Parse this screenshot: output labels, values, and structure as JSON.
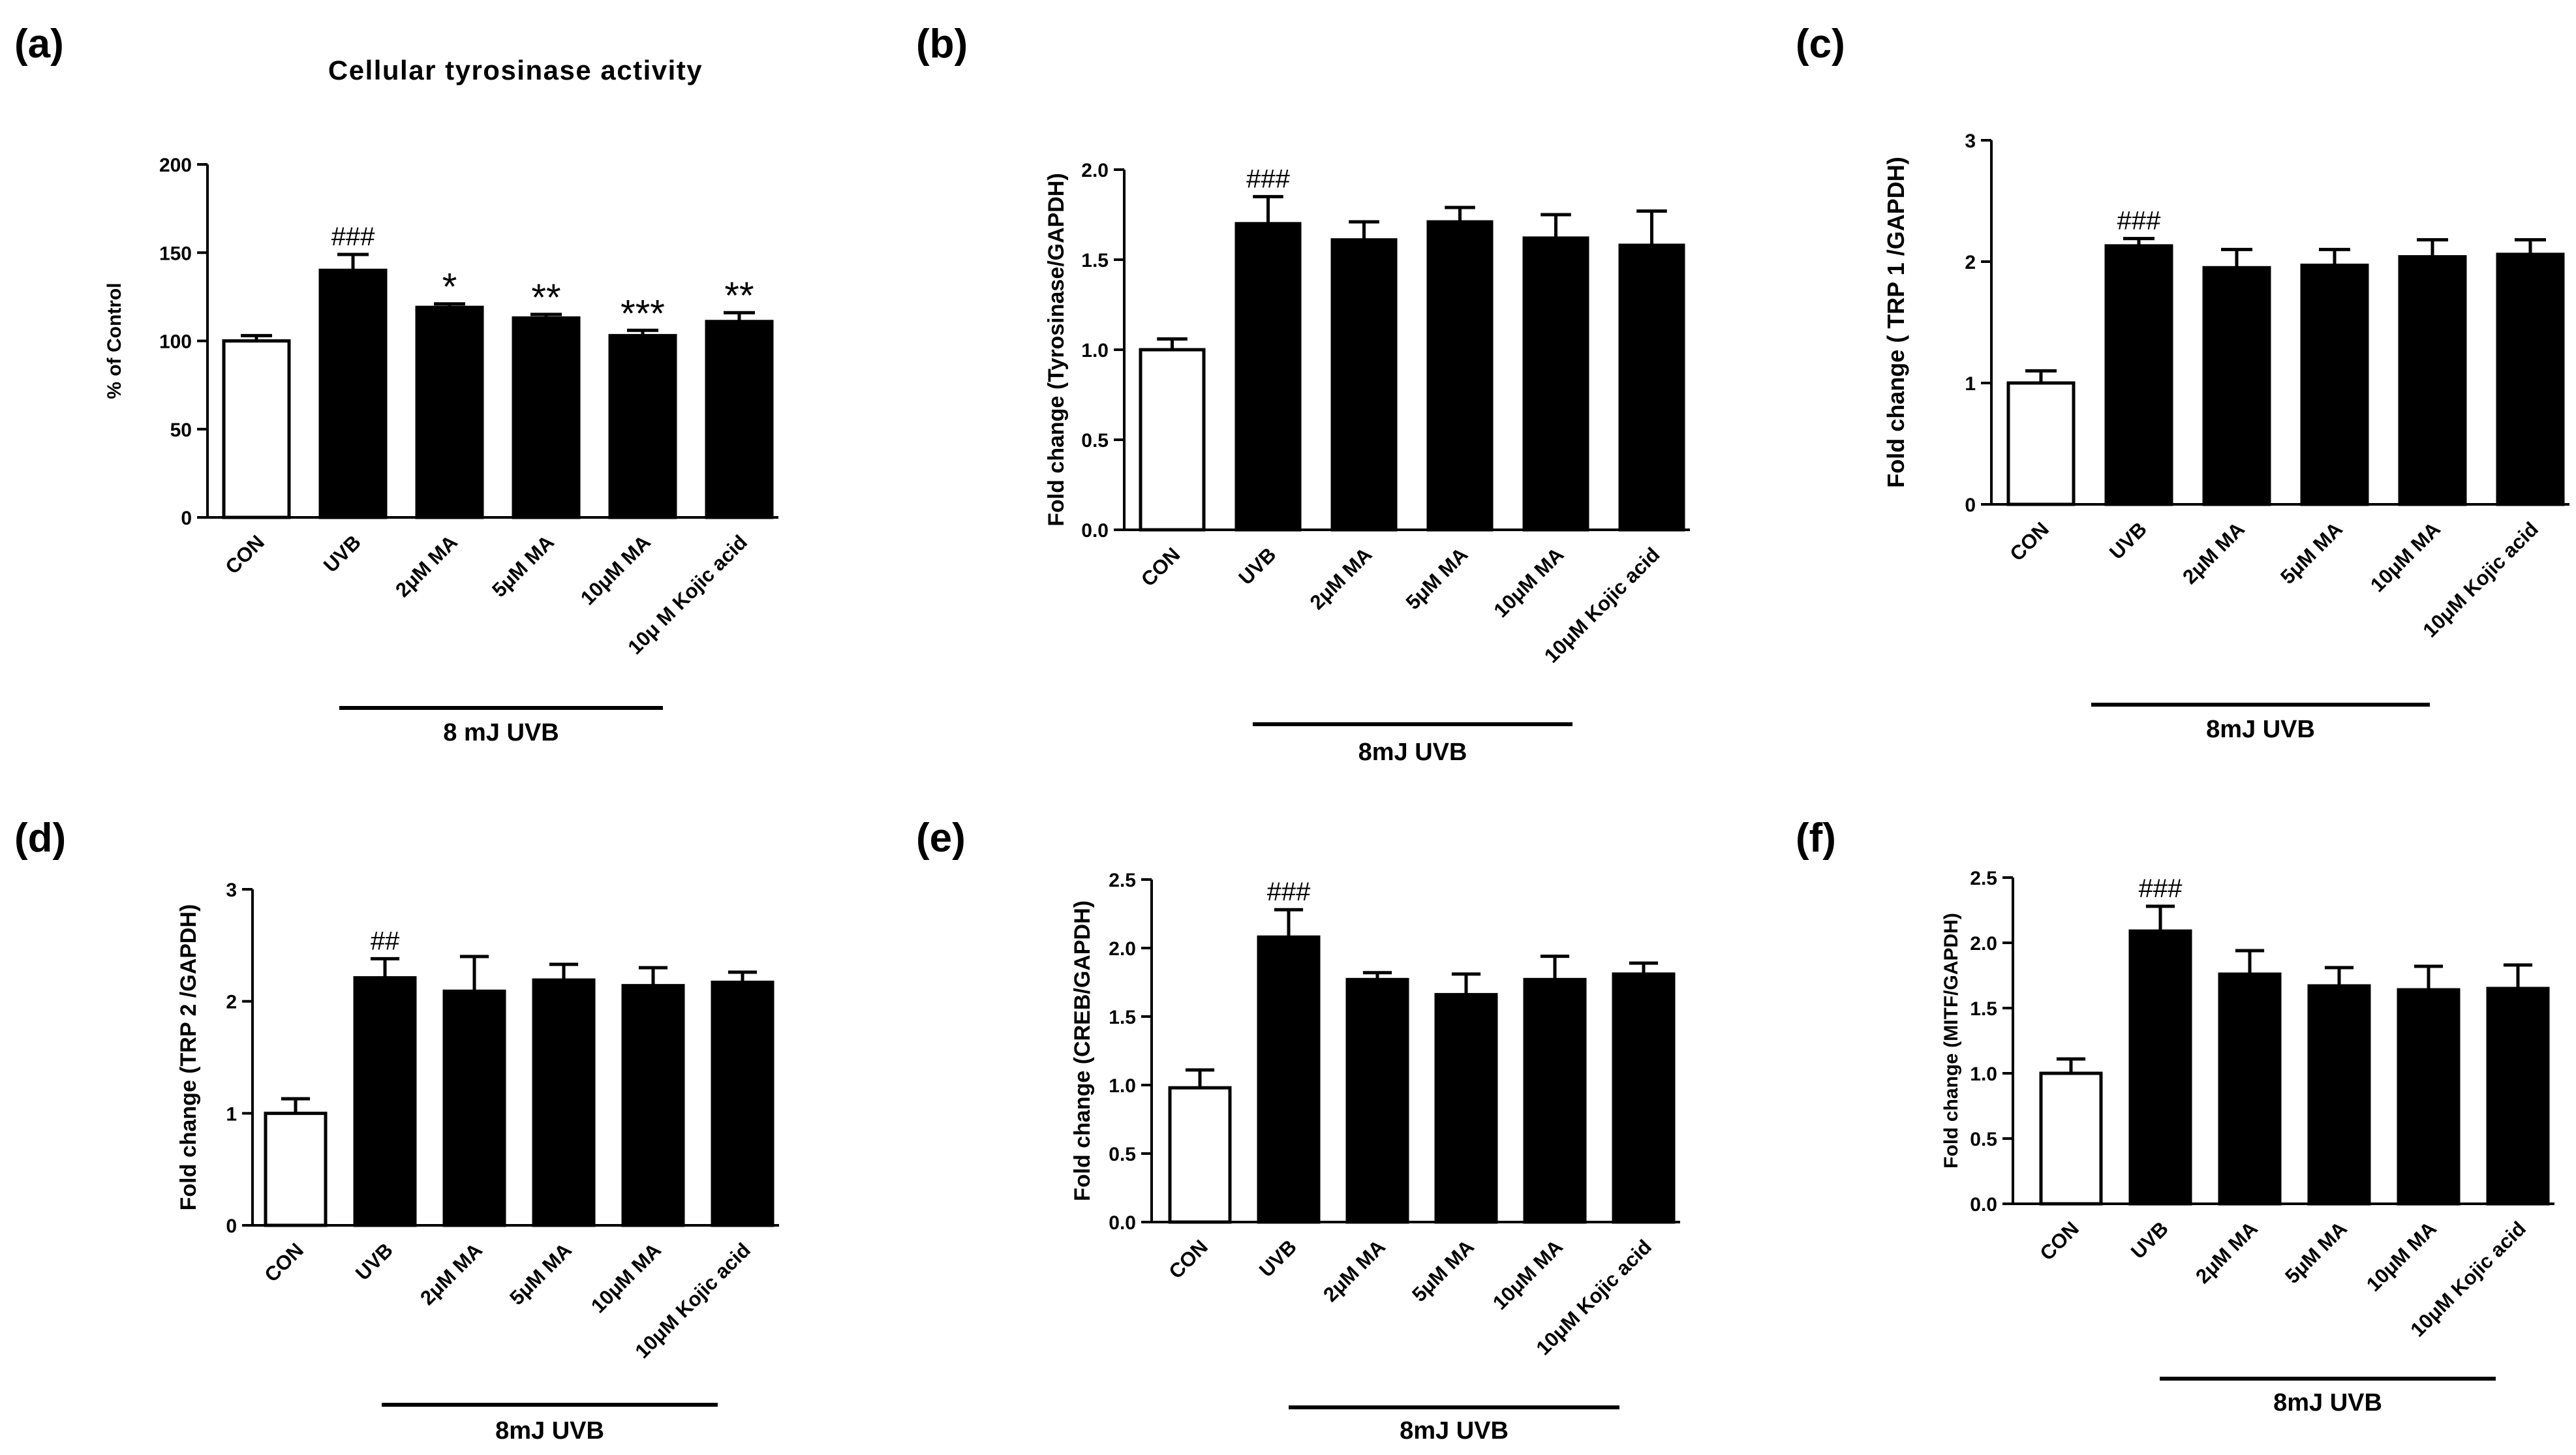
{
  "chart_data": [
    {
      "type": "bar",
      "panel_label": "(a)",
      "title": "Cellular tyrosinase activity",
      "ylabel": "% of Control",
      "xlabel": "",
      "ylim": [
        0,
        200
      ],
      "yticks": [
        0,
        50,
        100,
        150,
        200
      ],
      "tick_labels": [
        "0",
        "50",
        "100",
        "150",
        "200"
      ],
      "categories": [
        "CON",
        "UVB",
        "2μM MA",
        "5μM MA",
        "10μM MA",
        "10μ M Kojic acid"
      ],
      "values": [
        100,
        140,
        119,
        113,
        103,
        111
      ],
      "errors": [
        3,
        9,
        2,
        2,
        3,
        5
      ],
      "annotations": [
        "",
        "###",
        "*",
        "**",
        "***",
        "**"
      ],
      "bar_colors": [
        "#ffffff",
        "#000000",
        "#000000",
        "#000000",
        "#000000",
        "#000000"
      ],
      "group_label": "8 mJ UVB"
    },
    {
      "type": "bar",
      "panel_label": "(b)",
      "title": "",
      "ylabel": "Fold change (Tyrosinase/GAPDH)",
      "xlabel": "",
      "ylim": [
        0,
        2
      ],
      "yticks": [
        0,
        0.5,
        1,
        1.5,
        2
      ],
      "tick_labels": [
        "0.0",
        "0.5",
        "1.0",
        "1.5",
        "2.0"
      ],
      "categories": [
        "CON",
        "UVB",
        "2μM MA",
        "5μM MA",
        "10μM MA",
        "10μM Kojic acid"
      ],
      "values": [
        1.0,
        1.7,
        1.61,
        1.71,
        1.62,
        1.58
      ],
      "errors": [
        0.06,
        0.15,
        0.1,
        0.08,
        0.13,
        0.19
      ],
      "annotations": [
        "",
        "###",
        "",
        "",
        "",
        ""
      ],
      "bar_colors": [
        "#ffffff",
        "#000000",
        "#000000",
        "#000000",
        "#000000",
        "#000000"
      ],
      "group_label": "8mJ UVB"
    },
    {
      "type": "bar",
      "panel_label": "(c)",
      "title": "",
      "ylabel": "Fold change ( TRP 1 /GAPDH)",
      "xlabel": "",
      "ylim": [
        0,
        3
      ],
      "yticks": [
        0,
        1,
        2,
        3
      ],
      "tick_labels": [
        "0",
        "1",
        "2",
        "3"
      ],
      "categories": [
        "CON",
        "UVB",
        "2μM MA",
        "5μM MA",
        "10μM MA",
        "10μM Kojic acid"
      ],
      "values": [
        1.0,
        2.13,
        1.95,
        1.97,
        2.04,
        2.06
      ],
      "errors": [
        0.1,
        0.06,
        0.15,
        0.13,
        0.14,
        0.12
      ],
      "annotations": [
        "",
        "###",
        "",
        "",
        "",
        ""
      ],
      "bar_colors": [
        "#ffffff",
        "#000000",
        "#000000",
        "#000000",
        "#000000",
        "#000000"
      ],
      "group_label": "8mJ UVB"
    },
    {
      "type": "bar",
      "panel_label": "(d)",
      "title": "",
      "ylabel": "Fold change (TRP 2 /GAPDH)",
      "xlabel": "",
      "ylim": [
        0,
        3
      ],
      "yticks": [
        0,
        1,
        2,
        3
      ],
      "tick_labels": [
        "0",
        "1",
        "2",
        "3"
      ],
      "categories": [
        "CON",
        "UVB",
        "2μM MA",
        "5μM MA",
        "10μM MA",
        "10μM Kojic acid"
      ],
      "values": [
        1.0,
        2.21,
        2.09,
        2.19,
        2.14,
        2.17
      ],
      "errors": [
        0.13,
        0.17,
        0.31,
        0.14,
        0.16,
        0.09
      ],
      "annotations": [
        "",
        "##",
        "",
        "",
        "",
        ""
      ],
      "bar_colors": [
        "#ffffff",
        "#000000",
        "#000000",
        "#000000",
        "#000000",
        "#000000"
      ],
      "group_label": "8mJ UVB"
    },
    {
      "type": "bar",
      "panel_label": "(e)",
      "title": "",
      "ylabel": "Fold change (CREB/GAPDH)",
      "xlabel": "",
      "ylim": [
        0,
        2.5
      ],
      "yticks": [
        0,
        0.5,
        1,
        1.5,
        2,
        2.5
      ],
      "tick_labels": [
        "0.0",
        "0.5",
        "1.0",
        "1.5",
        "2.0",
        "2.5"
      ],
      "categories": [
        "CON",
        "UVB",
        "2μM MA",
        "5μM MA",
        "10μM MA",
        "10μM Kojic acid"
      ],
      "values": [
        0.98,
        2.08,
        1.77,
        1.66,
        1.77,
        1.81
      ],
      "errors": [
        0.13,
        0.2,
        0.05,
        0.15,
        0.17,
        0.08
      ],
      "annotations": [
        "",
        "###",
        "",
        "",
        "",
        ""
      ],
      "bar_colors": [
        "#ffffff",
        "#000000",
        "#000000",
        "#000000",
        "#000000",
        "#000000"
      ],
      "group_label": "8mJ UVB"
    },
    {
      "type": "bar",
      "panel_label": "(f)",
      "title": "",
      "ylabel": "Fold change (MITF/GAPDH)",
      "xlabel": "",
      "ylim": [
        0,
        2.5
      ],
      "yticks": [
        0,
        0.5,
        1,
        1.5,
        2,
        2.5
      ],
      "tick_labels": [
        "0.0",
        "0.5",
        "1.0",
        "1.5",
        "2.0",
        "2.5"
      ],
      "categories": [
        "CON",
        "UVB",
        "2μM MA",
        "5μM MA",
        "10μM MA",
        "10μM Kojic acid"
      ],
      "values": [
        1.0,
        2.09,
        1.76,
        1.67,
        1.64,
        1.65
      ],
      "errors": [
        0.11,
        0.19,
        0.18,
        0.14,
        0.18,
        0.18
      ],
      "annotations": [
        "",
        "###",
        "",
        "",
        "",
        ""
      ],
      "bar_colors": [
        "#ffffff",
        "#000000",
        "#000000",
        "#000000",
        "#000000",
        "#000000"
      ],
      "group_label": "8mJ UVB"
    }
  ]
}
